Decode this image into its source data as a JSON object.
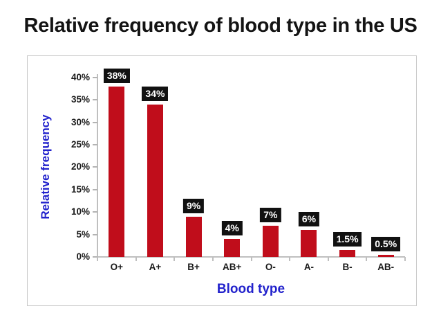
{
  "page": {
    "title": "Relative frequency of blood type in the US"
  },
  "chart_data": {
    "type": "bar",
    "title": "Relative frequency of blood type in the US",
    "xlabel": "Blood type",
    "ylabel": "Relative frequency",
    "categories": [
      "O+",
      "A+",
      "B+",
      "AB+",
      "O-",
      "A-",
      "B-",
      "AB-"
    ],
    "values": [
      38,
      34,
      9,
      4,
      7,
      6,
      1.5,
      0.5
    ],
    "value_labels": [
      "38%",
      "34%",
      "9%",
      "4%",
      "7%",
      "6%",
      "1.5%",
      "0.5%"
    ],
    "y_ticks": {
      "values": [
        0,
        5,
        10,
        15,
        20,
        25,
        30,
        35,
        40
      ],
      "labels": [
        "0%",
        "5%",
        "10%",
        "15%",
        "20%",
        "25%",
        "30%",
        "35%",
        "40%"
      ]
    },
    "ylim": [
      0,
      40
    ],
    "grid": false,
    "legend": "none",
    "colors": {
      "bar": "#C00D1B",
      "value_label_bg": "#111111",
      "value_label_text": "#FFFFFF",
      "axis_line": "#BFBFBF",
      "tick_text": "#1A1A1A",
      "axis_title": "#2222CC",
      "chart_title": "#141414",
      "frame_border": "#C9C9C9",
      "background": "#FFFFFF"
    }
  }
}
